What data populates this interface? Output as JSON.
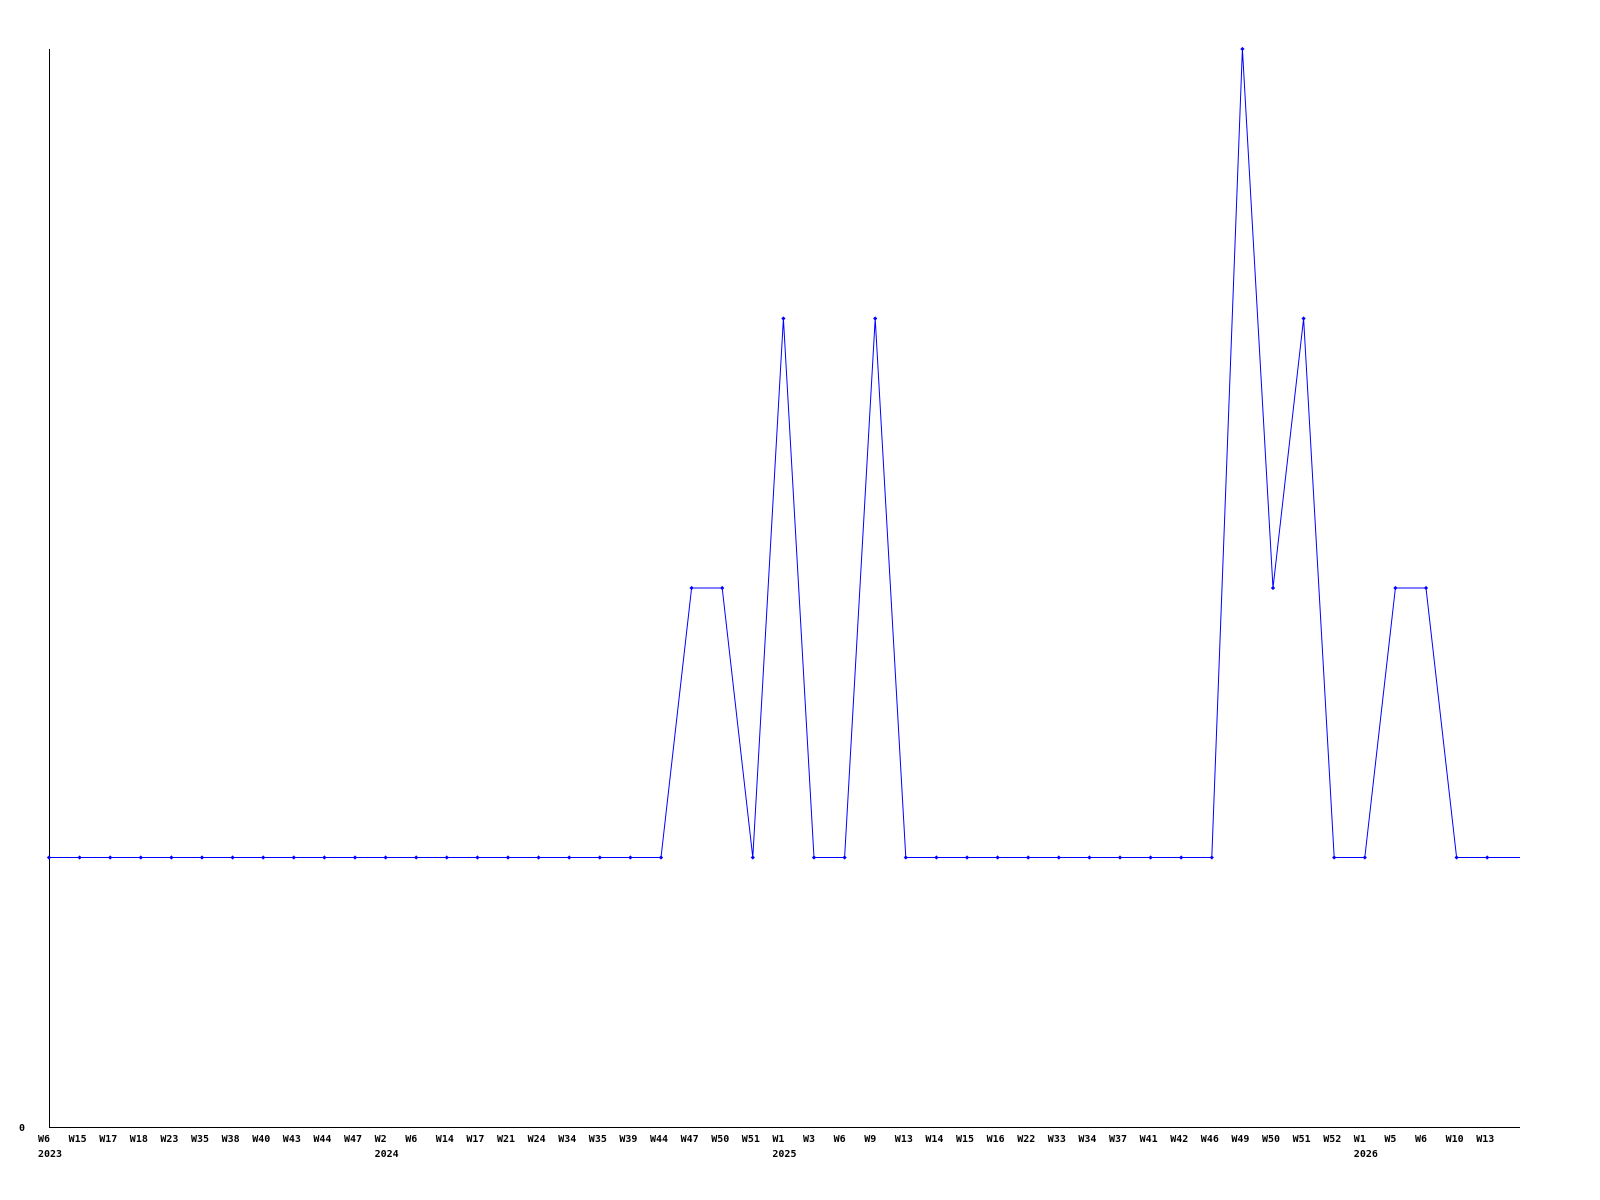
{
  "chart_data": {
    "type": "line",
    "title": "",
    "xlabel": "",
    "ylabel": "",
    "y_tick_labels": [
      "0"
    ],
    "ylim": [
      0,
      4
    ],
    "grid": false,
    "line_color": "#0000ff",
    "axis_color": "#000000",
    "categories": [
      "W6",
      "W15",
      "W17",
      "W18",
      "W23",
      "W35",
      "W38",
      "W40",
      "W43",
      "W44",
      "W47",
      "W2",
      "W6",
      "W14",
      "W17",
      "W21",
      "W24",
      "W34",
      "W35",
      "W39",
      "W44",
      "W47",
      "W50",
      "W51",
      "W1",
      "W3",
      "W6",
      "W9",
      "W13",
      "W14",
      "W15",
      "W16",
      "W22",
      "W33",
      "W34",
      "W37",
      "W41",
      "W42",
      "W46",
      "W49",
      "W50",
      "W51",
      "W52",
      "W1",
      "W5",
      "W6",
      "W10",
      "W13"
    ],
    "year_labels": [
      {
        "index": 0,
        "label": "2023"
      },
      {
        "index": 11,
        "label": "2024"
      },
      {
        "index": 24,
        "label": "2025"
      },
      {
        "index": 43,
        "label": "2026"
      }
    ],
    "series": [
      {
        "values": [
          1,
          1,
          1,
          1,
          1,
          1,
          1,
          1,
          1,
          1,
          1,
          1,
          1,
          1,
          1,
          1,
          1,
          1,
          1,
          1,
          1,
          2,
          2,
          1,
          3,
          1,
          1,
          3,
          1,
          1,
          1,
          1,
          1,
          1,
          1,
          1,
          1,
          1,
          1,
          4,
          2,
          3,
          1,
          1,
          2,
          2,
          1,
          1
        ]
      }
    ]
  }
}
